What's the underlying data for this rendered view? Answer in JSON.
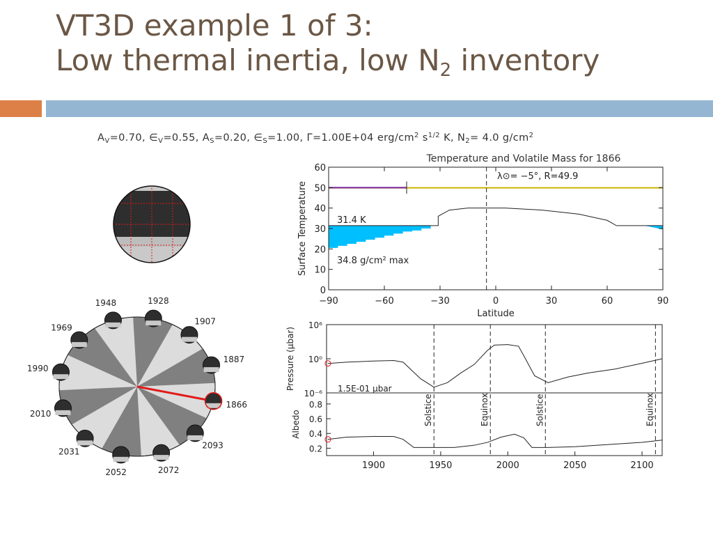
{
  "slide": {
    "title_line1": "VT3D example 1 of 3:",
    "title_line2_pre": "Low thermal inertia, low N",
    "title_line2_sub": "2",
    "title_line2_post": " inventory"
  },
  "params": {
    "av_label": "A",
    "av_sub": "V",
    "av_value": "=0.70, ",
    "ev_label": "∈",
    "ev_sub": "V",
    "ev_value": "=0.55, ",
    "as_label": "A",
    "as_sub": "S",
    "as_value": "=0.20, ",
    "es_label": "∈",
    "es_sub": "S",
    "es_value": "=1.00, ",
    "gamma": "Γ=1.00E+04 erg/cm",
    "gamma_sup": "2",
    "gamma_mid": " s",
    "gamma_sup2": "1/2",
    "gamma_end": " K, ",
    "n2_label": "N",
    "n2_sub": "2",
    "n2_value": "=  4.0 g/cm",
    "n2_sup": "2"
  },
  "colors": {
    "title": "#6b5745",
    "accent_orange": "#dd8047",
    "accent_blue": "#94b6d2",
    "volatile_fill": "#00bfff",
    "purple_line": "#7a1fa2",
    "yellow_line": "#c8b400",
    "red_line": "#e11a1a",
    "globe_dark": "#2e2e2e",
    "globe_light": "#c9c9c9"
  },
  "globe": {
    "grid_color": "#e11a1a"
  },
  "orbit": {
    "years": [
      "1948",
      "1928",
      "1907",
      "1887",
      "1866",
      "2093",
      "2072",
      "2052",
      "2031",
      "2010",
      "1990",
      "1969"
    ],
    "current": "1866"
  },
  "chart_data": [
    {
      "type": "area",
      "title": "Temperature and Volatile Mass for 1866",
      "xlabel": "Latitude",
      "ylabel": "Surface Temperature",
      "xlim": [
        -90,
        90
      ],
      "ylim": [
        0,
        60
      ],
      "xticks": [
        -90,
        -60,
        -30,
        0,
        30,
        60,
        90
      ],
      "yticks": [
        0,
        10,
        20,
        30,
        40,
        50,
        60
      ],
      "subsolar_latitude": -5,
      "annotation_subsolar": "λ⊙= −5°, R=49.9",
      "annotation_temp": "31.4 K",
      "annotation_mass": "34.8 g/cm² max",
      "series": [
        {
          "name": "",
          "role": "temperature",
          "x": [
            -90,
            -31,
            -31,
            -25,
            -15,
            -5,
            5,
            15,
            25,
            35,
            45,
            55,
            60,
            65,
            80,
            90
          ],
          "y": [
            31.4,
            31.4,
            36,
            39,
            40,
            40,
            40,
            39.5,
            39,
            38,
            37,
            35,
            34,
            31.4,
            31.4,
            31.4
          ]
        },
        {
          "name": "",
          "role": "volatile_mass_left",
          "x": [
            -90,
            -85,
            -80,
            -75,
            -70,
            -65,
            -60,
            -55,
            -50,
            -45,
            -40,
            -35,
            -31
          ],
          "y": [
            19.5,
            20.5,
            21.5,
            22.5,
            23.5,
            24.5,
            25.5,
            26.5,
            27.5,
            28.5,
            29,
            30,
            31.4
          ]
        },
        {
          "name": "",
          "role": "volatile_mass_right",
          "x": [
            80,
            85,
            90
          ],
          "y": [
            31.4,
            30.5,
            29.5
          ]
        },
        {
          "name": "",
          "role": "purple_line",
          "x": [
            -90,
            -48
          ],
          "y": [
            50,
            50
          ]
        },
        {
          "name": "",
          "role": "yellow_line",
          "x": [
            -90,
            90
          ],
          "y": [
            49.9,
            49.9
          ]
        }
      ]
    },
    {
      "type": "line",
      "ylabel": "Pressure (μbar)",
      "yscale": "log",
      "xlim": [
        1865,
        2115
      ],
      "ylim": [
        -6,
        6
      ],
      "ytick_labels": [
        "10⁻⁶",
        "10⁰",
        "10⁶"
      ],
      "annotation": "1.5E-01 μbar",
      "vlines": [
        1945,
        1987,
        2028,
        2110
      ],
      "current_x": 1866,
      "series": [
        {
          "name": "",
          "x": [
            1866,
            1880,
            1900,
            1915,
            1922,
            1935,
            1945,
            1955,
            1965,
            1975,
            1985,
            1990,
            2000,
            2008,
            2012,
            2020,
            2030,
            2045,
            2060,
            2080,
            2100,
            2115
          ],
          "y_log10": [
            -0.82,
            -0.6,
            -0.4,
            -0.3,
            -0.6,
            -3.5,
            -5.0,
            -4.2,
            -2.5,
            -1.0,
            1.5,
            2.4,
            2.5,
            2.2,
            0.5,
            -3.0,
            -4.2,
            -3.2,
            -2.5,
            -1.8,
            -0.8,
            0.0
          ]
        }
      ]
    },
    {
      "type": "line",
      "ylabel": "Albedo",
      "xlim": [
        1865,
        2115
      ],
      "ylim": [
        0.1,
        0.95
      ],
      "yticks": [
        0.2,
        0.4,
        0.6,
        0.8
      ],
      "xticks": [
        1900,
        1950,
        2000,
        2050,
        2100
      ],
      "vlines": [
        1945,
        1987,
        2028,
        2110
      ],
      "vline_labels": [
        "Solstice",
        "Equinox",
        "Solstice",
        "Equinox"
      ],
      "current_x": 1866,
      "series": [
        {
          "name": "",
          "x": [
            1866,
            1880,
            1900,
            1915,
            1922,
            1930,
            1945,
            1960,
            1975,
            1985,
            1995,
            2005,
            2012,
            2018,
            2030,
            2050,
            2075,
            2100,
            2115
          ],
          "y": [
            0.32,
            0.35,
            0.36,
            0.36,
            0.32,
            0.21,
            0.21,
            0.21,
            0.24,
            0.28,
            0.35,
            0.39,
            0.34,
            0.21,
            0.21,
            0.22,
            0.25,
            0.28,
            0.31
          ]
        }
      ]
    }
  ]
}
